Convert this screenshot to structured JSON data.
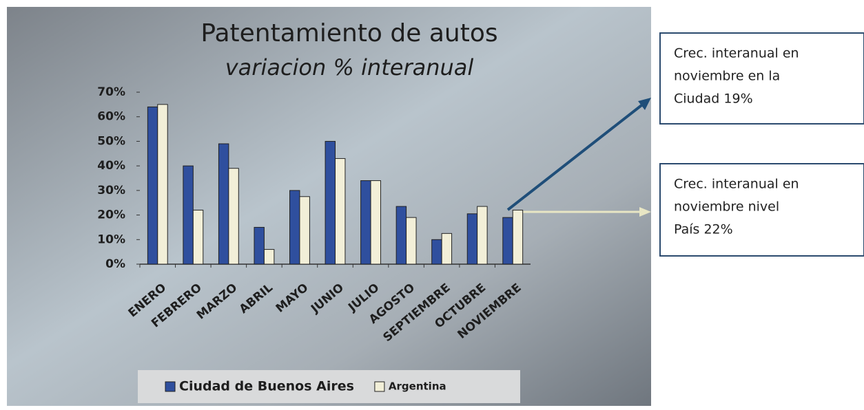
{
  "chart_data": {
    "type": "bar",
    "title": "Patentamiento de autos",
    "subtitle": "variacion % interanual",
    "categories": [
      "ENERO",
      "FEBRERO",
      "MARZO",
      "ABRIL",
      "MAYO",
      "JUNIO",
      "JULIO",
      "AGOSTO",
      "SEPTIEMBRE",
      "OCTUBRE",
      "NOVIEMBRE"
    ],
    "series": [
      {
        "name": "Ciudad de Buenos Aires",
        "color": "#2f4f9e",
        "values": [
          64,
          40,
          49,
          15,
          30,
          50,
          34,
          23.5,
          10,
          20.5,
          19
        ]
      },
      {
        "name": "Argentina",
        "color": "#f2efd8",
        "values": [
          65,
          22,
          39,
          6,
          27.5,
          43,
          34,
          19,
          12.5,
          23.5,
          22
        ]
      }
    ],
    "ylim": [
      0,
      70
    ],
    "yticks": [
      {
        "value": 0,
        "label": "0%"
      },
      {
        "value": 10,
        "label": "10%"
      },
      {
        "value": 20,
        "label": "20%"
      },
      {
        "value": 30,
        "label": "30%"
      },
      {
        "value": 40,
        "label": "40%"
      },
      {
        "value": 50,
        "label": "50%"
      },
      {
        "value": 60,
        "label": "60%"
      },
      {
        "value": 70,
        "label": "70%"
      }
    ],
    "legend": "bottom",
    "annotations": [
      {
        "lines": [
          "Crec. interanual en",
          "noviembre  en la",
          "Ciudad 19%"
        ]
      },
      {
        "lines": [
          "Crec. interanual en",
          "noviembre  nivel",
          "País 22%"
        ]
      }
    ]
  }
}
